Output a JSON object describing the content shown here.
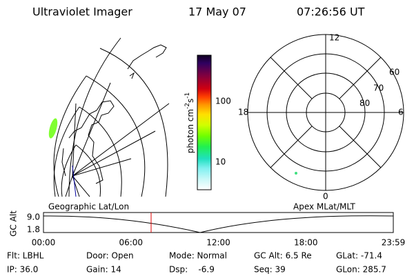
{
  "header": {
    "title": "Ultraviolet Imager",
    "date": "17 May 07",
    "time": "07:26:56 UT"
  },
  "colorbar": {
    "label": [
      "photon cm",
      "-2",
      "s",
      "-1"
    ],
    "ticks": [
      "100",
      "10"
    ]
  },
  "polar": {
    "mlt_labels": [
      "12",
      "18",
      "6",
      "0"
    ],
    "lat_labels": [
      "60",
      "70",
      "80"
    ]
  },
  "timeline": {
    "left_label": "Geographic Lat/Lon",
    "right_label": "Apex MLat/MLT",
    "y_label": "GC Alt",
    "y_ticks": [
      "9.0",
      "1.8"
    ],
    "x_ticks": [
      "00:00",
      "06:00",
      "12:00",
      "18:00",
      "23:59"
    ]
  },
  "status": [
    [
      "Flt: LBHL",
      "Door: Open",
      "Mode: Normal",
      "GC Alt: 6.5 Re",
      "GLat: -71.4"
    ],
    [
      "IP: 36.0",
      "Gain: 14",
      "Dsp:    -6.9",
      "Seq: 39",
      "GLon: 285.7"
    ]
  ]
}
